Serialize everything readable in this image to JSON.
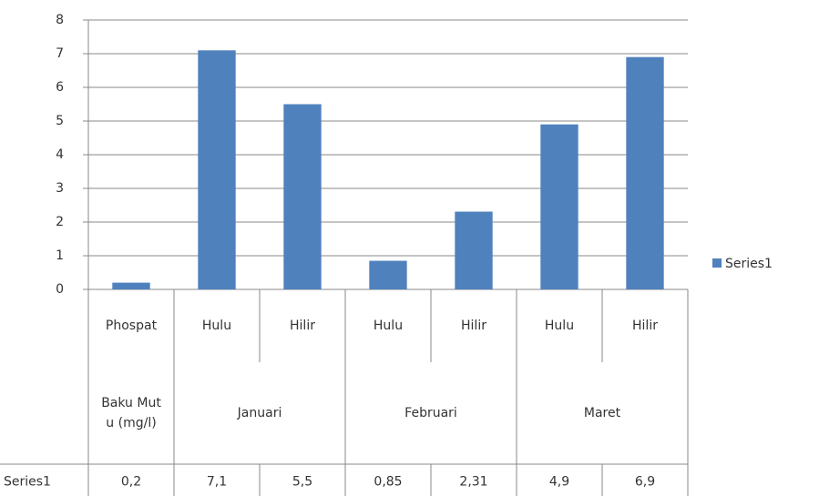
{
  "chart_data": {
    "type": "bar",
    "categories": [
      "Phospat",
      "Hulu",
      "Hilir",
      "Hulu",
      "Hilir",
      "Hulu",
      "Hilir"
    ],
    "x_groups": [
      "Baku Mutu (mg/l)",
      "Januari",
      null,
      "Februari",
      null,
      "Maret",
      null
    ],
    "series": [
      {
        "name": "Series1",
        "color": "#4f81bd",
        "values": [
          0.2,
          7.1,
          5.5,
          0.85,
          2.31,
          4.9,
          6.9
        ],
        "value_labels": [
          "0,2",
          "7,1",
          "5,5",
          "0,85",
          "2,31",
          "4,9",
          "6,9"
        ]
      }
    ],
    "ylim": [
      0,
      8
    ],
    "yticks": [
      0,
      1,
      2,
      3,
      4,
      5,
      6,
      7,
      8
    ],
    "grid": true,
    "legend": "right"
  }
}
